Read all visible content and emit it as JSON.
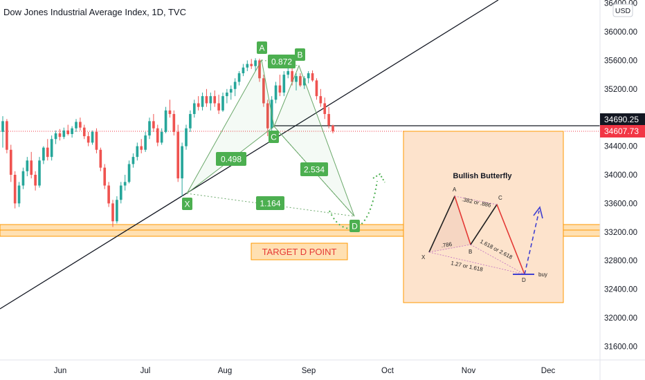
{
  "chart_data": {
    "type": "candlestick",
    "title": "Dow Jones Industrial Average Index, 1D, TVC",
    "currency": "USD",
    "x_ticks": [
      "Jun",
      "Jul",
      "Aug",
      "Sep",
      "Oct",
      "Nov",
      "Dec"
    ],
    "y_ticks": [
      "36400.00",
      "36000.00",
      "35600.00",
      "35200.00",
      "34800.00",
      "34400.00",
      "34000.00",
      "33600.00",
      "33200.00",
      "32800.00",
      "32400.00",
      "32000.00",
      "31600.00"
    ],
    "y_values": [
      36400,
      36000,
      35600,
      35200,
      34800,
      34400,
      34000,
      33600,
      33200,
      32800,
      32400,
      32000,
      31600
    ],
    "price_tags": [
      {
        "value": 34690.25,
        "label": "34690.25",
        "color": "#131722"
      },
      {
        "value": 34607.73,
        "label": "34607.73",
        "color": "#f23645"
      }
    ],
    "pattern_points": [
      "X",
      "A",
      "B",
      "C",
      "D"
    ],
    "ratios": [
      "0.872",
      "0.498",
      "2.534",
      "1.164"
    ],
    "target_label": "TARGET D POINT",
    "inset": {
      "title": "Bullish Butterfly",
      "points": [
        "X",
        "A",
        "B",
        "C",
        "D"
      ],
      "ratios": [
        ".382 or .886",
        ".786",
        "1.618 or 2.618",
        "1.27 or 1.618"
      ],
      "action": "buy"
    },
    "colors": {
      "up": "#26a69a",
      "down": "#ef5350",
      "zone": "#ff9800",
      "label_green": "#4caf50"
    },
    "candles": [
      {
        "o": 34600,
        "h": 34820,
        "l": 34380,
        "c": 34750
      },
      {
        "o": 34750,
        "h": 34780,
        "l": 34300,
        "c": 34350
      },
      {
        "o": 34350,
        "h": 34420,
        "l": 33900,
        "c": 34000
      },
      {
        "o": 34000,
        "h": 34050,
        "l": 33530,
        "c": 33600
      },
      {
        "o": 33600,
        "h": 33900,
        "l": 33550,
        "c": 33850
      },
      {
        "o": 33850,
        "h": 34100,
        "l": 33800,
        "c": 34050
      },
      {
        "o": 34050,
        "h": 34250,
        "l": 33980,
        "c": 34200
      },
      {
        "o": 34200,
        "h": 34320,
        "l": 33950,
        "c": 34000
      },
      {
        "o": 34000,
        "h": 34050,
        "l": 33780,
        "c": 33850
      },
      {
        "o": 33850,
        "h": 34250,
        "l": 33820,
        "c": 34200
      },
      {
        "o": 34200,
        "h": 34400,
        "l": 34150,
        "c": 34380
      },
      {
        "o": 34380,
        "h": 34500,
        "l": 34200,
        "c": 34250
      },
      {
        "o": 34250,
        "h": 34550,
        "l": 34200,
        "c": 34500
      },
      {
        "o": 34500,
        "h": 34620,
        "l": 34430,
        "c": 34580
      },
      {
        "o": 34580,
        "h": 34640,
        "l": 34480,
        "c": 34530
      },
      {
        "o": 34530,
        "h": 34660,
        "l": 34500,
        "c": 34620
      },
      {
        "o": 34620,
        "h": 34700,
        "l": 34550,
        "c": 34570
      },
      {
        "o": 34570,
        "h": 34680,
        "l": 34520,
        "c": 34650
      },
      {
        "o": 34650,
        "h": 34780,
        "l": 34600,
        "c": 34740
      },
      {
        "o": 34740,
        "h": 34800,
        "l": 34620,
        "c": 34660
      },
      {
        "o": 34660,
        "h": 34700,
        "l": 34500,
        "c": 34540
      },
      {
        "o": 34540,
        "h": 34600,
        "l": 34400,
        "c": 34450
      },
      {
        "o": 34450,
        "h": 34620,
        "l": 34420,
        "c": 34600
      },
      {
        "o": 34600,
        "h": 34650,
        "l": 34300,
        "c": 34350
      },
      {
        "o": 34350,
        "h": 34380,
        "l": 34050,
        "c": 34100
      },
      {
        "o": 34100,
        "h": 34150,
        "l": 33800,
        "c": 33850
      },
      {
        "o": 33850,
        "h": 33900,
        "l": 33550,
        "c": 33600
      },
      {
        "o": 33600,
        "h": 33650,
        "l": 33271,
        "c": 33350
      },
      {
        "o": 33350,
        "h": 33700,
        "l": 33320,
        "c": 33650
      },
      {
        "o": 33650,
        "h": 33900,
        "l": 33600,
        "c": 33850
      },
      {
        "o": 33850,
        "h": 34000,
        "l": 33780,
        "c": 33900
      },
      {
        "o": 33900,
        "h": 34200,
        "l": 33880,
        "c": 34150
      },
      {
        "o": 34150,
        "h": 34300,
        "l": 34100,
        "c": 34250
      },
      {
        "o": 34250,
        "h": 34450,
        "l": 34200,
        "c": 34400
      },
      {
        "o": 34400,
        "h": 34500,
        "l": 34300,
        "c": 34350
      },
      {
        "o": 34350,
        "h": 34600,
        "l": 34320,
        "c": 34550
      },
      {
        "o": 34550,
        "h": 34800,
        "l": 34500,
        "c": 34750
      },
      {
        "o": 34750,
        "h": 34850,
        "l": 34600,
        "c": 34650
      },
      {
        "o": 34650,
        "h": 34700,
        "l": 34400,
        "c": 34450
      },
      {
        "o": 34450,
        "h": 34650,
        "l": 34420,
        "c": 34600
      },
      {
        "o": 34600,
        "h": 34950,
        "l": 34580,
        "c": 34900
      },
      {
        "o": 34900,
        "h": 35050,
        "l": 34800,
        "c": 34850
      },
      {
        "o": 34850,
        "h": 34900,
        "l": 34550,
        "c": 34600
      },
      {
        "o": 34600,
        "h": 34700,
        "l": 33900,
        "c": 33950
      },
      {
        "o": 33950,
        "h": 34450,
        "l": 33700,
        "c": 34400
      },
      {
        "o": 34400,
        "h": 34700,
        "l": 34350,
        "c": 34650
      },
      {
        "o": 34650,
        "h": 34900,
        "l": 34600,
        "c": 34850
      },
      {
        "o": 34850,
        "h": 35050,
        "l": 34800,
        "c": 35000
      },
      {
        "o": 35000,
        "h": 35100,
        "l": 34900,
        "c": 34950
      },
      {
        "o": 34950,
        "h": 35150,
        "l": 34900,
        "c": 35100
      },
      {
        "o": 35100,
        "h": 35200,
        "l": 34950,
        "c": 35000
      },
      {
        "o": 35000,
        "h": 35150,
        "l": 34900,
        "c": 35100
      },
      {
        "o": 35100,
        "h": 35180,
        "l": 34950,
        "c": 35000
      },
      {
        "o": 35000,
        "h": 35120,
        "l": 34850,
        "c": 34900
      },
      {
        "o": 34900,
        "h": 35150,
        "l": 34880,
        "c": 35100
      },
      {
        "o": 35100,
        "h": 35200,
        "l": 35000,
        "c": 35150
      },
      {
        "o": 35150,
        "h": 35250,
        "l": 35050,
        "c": 35200
      },
      {
        "o": 35200,
        "h": 35350,
        "l": 35100,
        "c": 35300
      },
      {
        "o": 35300,
        "h": 35450,
        "l": 35250,
        "c": 35420
      },
      {
        "o": 35420,
        "h": 35550,
        "l": 35380,
        "c": 35500
      },
      {
        "o": 35500,
        "h": 35600,
        "l": 35450,
        "c": 35550
      },
      {
        "o": 35550,
        "h": 35620,
        "l": 35480,
        "c": 35520
      },
      {
        "o": 35520,
        "h": 35630,
        "l": 35450,
        "c": 35600
      },
      {
        "o": 35600,
        "h": 35625,
        "l": 35300,
        "c": 35350
      },
      {
        "o": 35350,
        "h": 35400,
        "l": 34950,
        "c": 35000
      },
      {
        "o": 35000,
        "h": 35050,
        "l": 34540,
        "c": 34650
      },
      {
        "o": 34650,
        "h": 35100,
        "l": 34600,
        "c": 35050
      },
      {
        "o": 35050,
        "h": 35300,
        "l": 35000,
        "c": 35250
      },
      {
        "o": 35250,
        "h": 35400,
        "l": 35100,
        "c": 35150
      },
      {
        "o": 35150,
        "h": 35450,
        "l": 35100,
        "c": 35400
      },
      {
        "o": 35400,
        "h": 35500,
        "l": 35350,
        "c": 35450
      },
      {
        "o": 35450,
        "h": 35500,
        "l": 35250,
        "c": 35300
      },
      {
        "o": 35300,
        "h": 35420,
        "l": 35180,
        "c": 35380
      },
      {
        "o": 35380,
        "h": 35420,
        "l": 35230,
        "c": 35250
      },
      {
        "o": 35250,
        "h": 35380,
        "l": 35200,
        "c": 35350
      },
      {
        "o": 35350,
        "h": 35450,
        "l": 35280,
        "c": 35420
      },
      {
        "o": 35420,
        "h": 35460,
        "l": 35300,
        "c": 35320
      },
      {
        "o": 35320,
        "h": 35350,
        "l": 35050,
        "c": 35100
      },
      {
        "o": 35100,
        "h": 35200,
        "l": 34950,
        "c": 35000
      },
      {
        "o": 35000,
        "h": 35080,
        "l": 34780,
        "c": 34850
      },
      {
        "o": 34850,
        "h": 34950,
        "l": 34650,
        "c": 34690
      },
      {
        "o": 34690,
        "h": 34700,
        "l": 34580,
        "c": 34607
      }
    ]
  }
}
